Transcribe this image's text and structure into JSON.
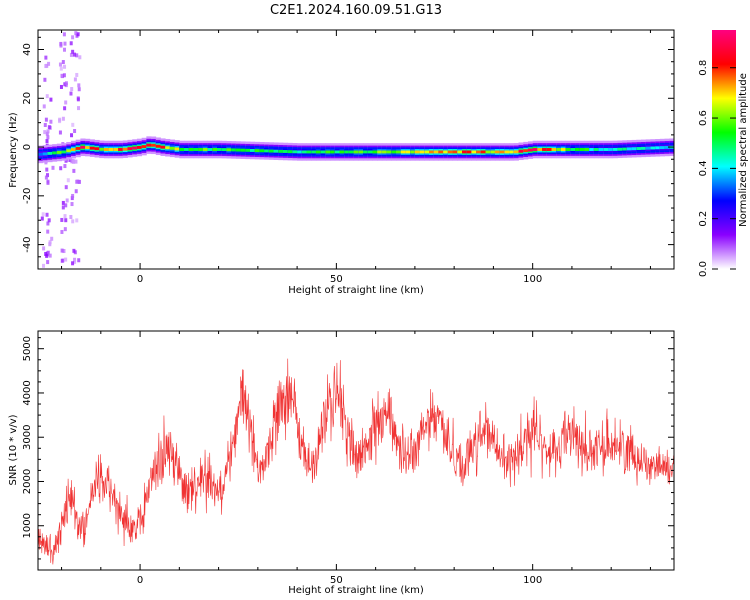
{
  "figure": {
    "title": "C2E1.2024.160.09.51.G13"
  },
  "chart_data": [
    {
      "type": "heatmap",
      "xlabel": "Height of straight line (km)",
      "ylabel": "Frequency (Hz)",
      "xlim": [
        -26,
        136
      ],
      "ylim": [
        -50,
        48
      ],
      "xticks": [
        0,
        50,
        100
      ],
      "yticks": [
        -40,
        -20,
        0,
        20,
        40
      ],
      "grid": false,
      "colorbar": {
        "label": "Normalized spectral amplitude",
        "range": [
          0.0,
          0.95
        ],
        "ticks": [
          0.0,
          0.2,
          0.4,
          0.6,
          0.8
        ],
        "colormap": [
          "#ffffff",
          "#8a00ff",
          "#0000ff",
          "#00ffff",
          "#00ff00",
          "#ffff00",
          "#ff0000",
          "#ff007f"
        ]
      },
      "band": {
        "x": [
          -26,
          -20,
          -15,
          -10,
          -5,
          0,
          2,
          5,
          10,
          20,
          40,
          60,
          80,
          82,
          90,
          95,
          100,
          110,
          120,
          136
        ],
        "center": [
          -3,
          -2,
          0,
          -1,
          -1,
          0,
          1,
          0,
          -1,
          -1,
          -2,
          -2,
          -2,
          -2,
          -2,
          -2,
          -1,
          -1,
          -1,
          0
        ],
        "peak": [
          0.4,
          0.6,
          0.9,
          0.7,
          0.8,
          0.85,
          0.9,
          0.85,
          0.6,
          0.55,
          0.5,
          0.6,
          0.75,
          0.85,
          0.7,
          0.8,
          0.9,
          0.55,
          0.45,
          0.4
        ]
      },
      "scatter_noise_columns_km": [
        -24,
        -20,
        -17
      ]
    },
    {
      "type": "line",
      "xlabel": "Height of straight line (km)",
      "ylabel": "SNR (10 * v/v)",
      "xlim": [
        -26,
        136
      ],
      "ylim": [
        0,
        5400
      ],
      "xticks": [
        0,
        50,
        100
      ],
      "yticks": [
        1000,
        2000,
        3000,
        4000,
        5000
      ],
      "grid": false,
      "color": "#f03232",
      "envelope": {
        "x": [
          -26,
          -24,
          -22,
          -20,
          -18,
          -16,
          -14,
          -12,
          -10,
          -8,
          -6,
          -4,
          -2,
          0,
          2,
          4,
          6,
          8,
          10,
          12,
          14,
          16,
          18,
          20,
          22,
          24,
          26,
          28,
          30,
          32,
          34,
          36,
          38,
          40,
          42,
          44,
          46,
          48,
          50,
          52,
          54,
          56,
          58,
          60,
          62,
          64,
          66,
          68,
          70,
          72,
          74,
          76,
          78,
          80,
          82,
          84,
          86,
          88,
          90,
          92,
          94,
          96,
          98,
          100,
          102,
          104,
          106,
          108,
          110,
          112,
          114,
          116,
          118,
          120,
          122,
          124,
          126,
          128,
          130,
          132,
          134,
          136
        ],
        "mid": [
          900,
          600,
          500,
          900,
          1700,
          1200,
          900,
          1800,
          2100,
          1800,
          1500,
          1300,
          1000,
          900,
          1800,
          2300,
          2700,
          2600,
          2200,
          1700,
          1800,
          2300,
          2000,
          1800,
          2200,
          3000,
          4000,
          3300,
          2300,
          2500,
          3200,
          3900,
          4100,
          3300,
          2500,
          2300,
          3000,
          3700,
          4000,
          3500,
          2700,
          2500,
          2800,
          3300,
          3600,
          3400,
          2800,
          2500,
          2700,
          3100,
          3400,
          3500,
          3000,
          2600,
          2400,
          2600,
          3000,
          3200,
          2900,
          2500,
          2400,
          2700,
          3000,
          3100,
          2900,
          2600,
          2700,
          3100,
          3100,
          2900,
          2700,
          2600,
          2800,
          2900,
          2800,
          2700,
          2600,
          2500,
          2400,
          2400,
          2300,
          2300
        ],
        "spread": [
          600,
          500,
          500,
          800,
          900,
          700,
          700,
          800,
          800,
          700,
          700,
          700,
          700,
          700,
          800,
          800,
          900,
          800,
          800,
          700,
          700,
          800,
          700,
          600,
          700,
          900,
          1000,
          900,
          700,
          700,
          900,
          1000,
          1100,
          900,
          700,
          700,
          900,
          1000,
          1000,
          900,
          800,
          700,
          800,
          900,
          900,
          800,
          700,
          700,
          800,
          900,
          900,
          900,
          800,
          700,
          700,
          800,
          900,
          900,
          800,
          700,
          700,
          800,
          900,
          1000,
          800,
          700,
          800,
          900,
          900,
          800,
          700,
          700,
          800,
          800,
          700,
          700,
          700,
          600,
          600,
          600,
          600,
          600
        ]
      }
    }
  ]
}
